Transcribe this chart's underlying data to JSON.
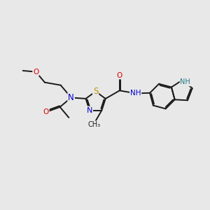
{
  "bg_color": "#e8e8e8",
  "bond_color": "#1a1a1a",
  "bond_width": 1.4,
  "atom_colors": {
    "N": "#0000cc",
    "O": "#dd0000",
    "S": "#bb9900",
    "NH_indole": "#227788",
    "C": "#1a1a1a"
  },
  "font_size": 7.5,
  "fig_size": [
    3.0,
    3.0
  ],
  "dpi": 100
}
